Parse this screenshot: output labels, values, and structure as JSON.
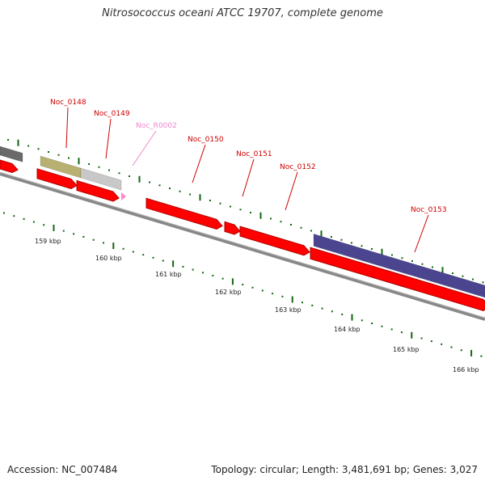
{
  "title": "Nitrosococcus oceani ATCC 19707, complete genome",
  "footer": {
    "accession": "Accession: NC_007484",
    "summary": "Topology: circular; Length: 3,481,691 bp; Genes: 3,027"
  },
  "colors": {
    "cds": "#ff0000",
    "cds_edge": "#b00000",
    "gene_label": "#cc0000",
    "rna_label": "#ee88cc",
    "rna_feature": "#ff88cc",
    "backbone": "#888888",
    "ticks": "#116611",
    "olive_bar": "#b8b070",
    "gray_bar": "#c8c8c8",
    "dark_bar": "#6a6a6a",
    "purple_bar": "#4b4590",
    "label_line": "#cc0000"
  },
  "scale": {
    "unit": "kbp",
    "labels": [
      "159 kbp",
      "160 kbp",
      "161 kbp",
      "162 kbp",
      "163 kbp",
      "164 kbp",
      "165 kbp",
      "166 kbp"
    ]
  },
  "features": [
    {
      "label": "Noc_0148",
      "type": "gene"
    },
    {
      "label": "Noc_0149",
      "type": "gene"
    },
    {
      "label": "Noc_R0002",
      "type": "rna"
    },
    {
      "label": "Noc_0150",
      "type": "gene"
    },
    {
      "label": "Noc_0151",
      "type": "gene"
    },
    {
      "label": "Noc_0152",
      "type": "gene"
    },
    {
      "label": "Noc_0153",
      "type": "gene"
    }
  ]
}
